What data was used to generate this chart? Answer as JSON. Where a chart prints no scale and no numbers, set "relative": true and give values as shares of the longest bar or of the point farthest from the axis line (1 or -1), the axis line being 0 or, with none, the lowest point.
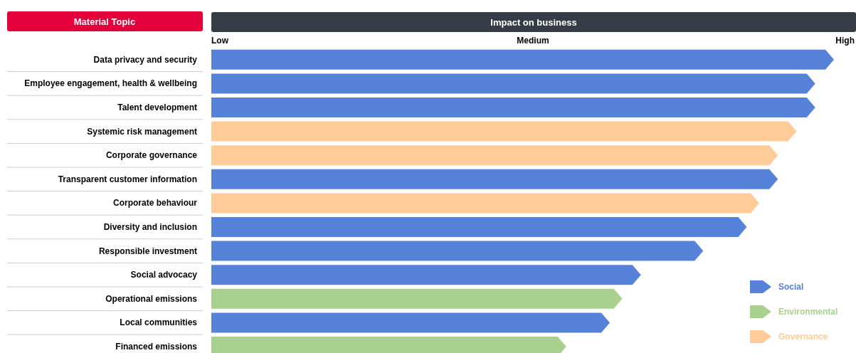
{
  "chart_data": {
    "type": "bar",
    "orientation": "horizontal",
    "relative": true,
    "ylabel": "Material Topic",
    "xlabel": "Impact on business",
    "annotations": [
      "Low",
      "Medium",
      "High"
    ],
    "categories": [
      "Data privacy and security",
      "Employee engagement, health & wellbeing",
      "Talent development",
      "Systemic risk management",
      "Corporate governance",
      "Transparent customer information",
      "Corporate behaviour",
      "Diversity and inclusion",
      "Responsible investment",
      "Social advocacy",
      "Operational emissions",
      "Local communities",
      "Financed emissions"
    ],
    "series": [
      {
        "name": "Social",
        "color": "#5682da",
        "values": [
          1.0,
          0.97,
          0.97,
          null,
          null,
          0.91,
          null,
          0.86,
          0.79,
          0.69,
          null,
          0.64,
          null
        ]
      },
      {
        "name": "Environmental",
        "color": "#a9d18e",
        "values": [
          null,
          null,
          null,
          null,
          null,
          null,
          null,
          null,
          null,
          null,
          0.66,
          null,
          0.57
        ]
      },
      {
        "name": "Governance",
        "color": "#ffcc99",
        "values": [
          null,
          null,
          null,
          0.94,
          0.91,
          null,
          0.88,
          null,
          null,
          null,
          null,
          null,
          null
        ]
      }
    ],
    "legend": "bottom right"
  }
}
